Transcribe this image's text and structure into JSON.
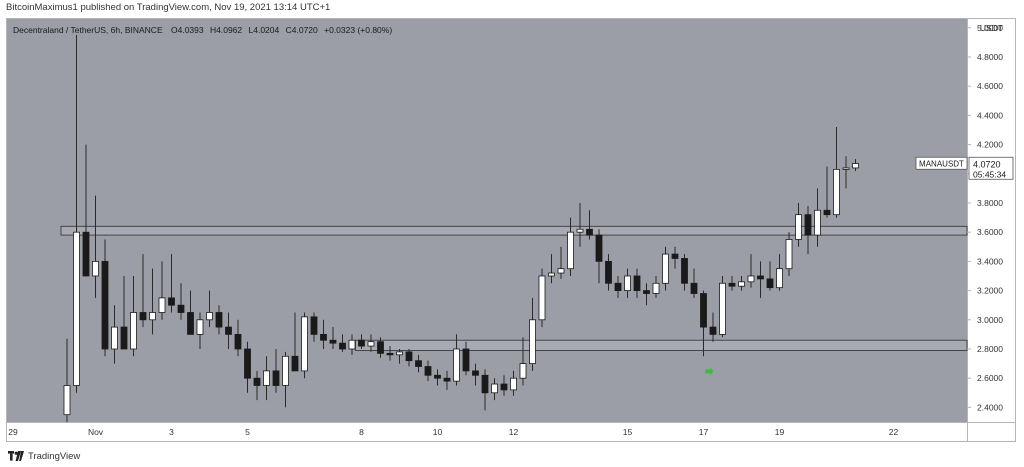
{
  "header": {
    "publisher_line": "BitcoinMaximus1 published on TradingView.com, Nov 19, 2021 13:14 UTC+1"
  },
  "footer": {
    "brand": "TradingView",
    "logo_icon": "tradingview-logo-icon"
  },
  "ohlc_bar": {
    "symbol": "Decentraland / TetherUS, 6h, BINANCE",
    "o_label": "O",
    "o_value": "4.0393",
    "h_label": "H",
    "h_value": "4.0962",
    "l_label": "L",
    "l_value": "4.0204",
    "c_label": "C",
    "c_value": "4.0720",
    "change": "+0.0323 (+0.80%)"
  },
  "price_tag": {
    "symbol": "MANAUSDT",
    "price": "4.0720",
    "countdown": "05:45:34"
  },
  "colors": {
    "background": "#9b9ea7",
    "bull": "#ffffff",
    "bear": "#1a1a1a",
    "wick": "#2a2a2a",
    "zone_border": "#3c3c3c",
    "zone_fill": "#a7aab2",
    "arrow": "#3dbb3d",
    "text": "#333333"
  },
  "chart_data": {
    "type": "candlestick",
    "title": "Decentraland / TetherUS, 6h, BINANCE",
    "y_unit": "USDT",
    "ylim": [
      2.3,
      5.06
    ],
    "y_ticks": [
      "2.4000",
      "2.6000",
      "2.8000",
      "3.0000",
      "3.2000",
      "3.4000",
      "3.6000",
      "3.8000",
      "4.0000",
      "4.2000",
      "4.4000",
      "4.6000",
      "4.8000",
      "5.0000"
    ],
    "x_ticks": [
      {
        "label": "29",
        "t": -9
      },
      {
        "label": "Nov",
        "t": 3
      },
      {
        "label": "3",
        "t": 11
      },
      {
        "label": "5",
        "t": 19
      },
      {
        "label": "8",
        "t": 31
      },
      {
        "label": "10",
        "t": 39
      },
      {
        "label": "12",
        "t": 47
      },
      {
        "label": "15",
        "t": 59
      },
      {
        "label": "17",
        "t": 67
      },
      {
        "label": "19",
        "t": 75
      },
      {
        "label": "22",
        "t": 87
      }
    ],
    "candles": [
      [
        2.35,
        2.87,
        2.3,
        2.55
      ],
      [
        2.55,
        4.95,
        2.5,
        3.6
      ],
      [
        3.6,
        4.2,
        3.3,
        3.3
      ],
      [
        3.3,
        3.85,
        3.15,
        3.4
      ],
      [
        3.4,
        3.55,
        2.75,
        2.8
      ],
      [
        2.8,
        3.1,
        2.7,
        2.95
      ],
      [
        2.95,
        3.3,
        2.8,
        2.8
      ],
      [
        2.8,
        3.3,
        2.75,
        3.05
      ],
      [
        3.05,
        3.45,
        2.95,
        3.0
      ],
      [
        3.0,
        3.35,
        2.9,
        3.05
      ],
      [
        3.05,
        3.4,
        3.0,
        3.15
      ],
      [
        3.15,
        3.45,
        3.05,
        3.1
      ],
      [
        3.1,
        3.25,
        3.0,
        3.05
      ],
      [
        3.05,
        3.2,
        2.9,
        2.9
      ],
      [
        2.9,
        3.05,
        2.8,
        3.0
      ],
      [
        3.0,
        3.2,
        2.95,
        3.05
      ],
      [
        3.05,
        3.1,
        2.9,
        2.95
      ],
      [
        2.95,
        3.05,
        2.8,
        2.9
      ],
      [
        2.9,
        3.0,
        2.75,
        2.8
      ],
      [
        2.8,
        2.85,
        2.5,
        2.6
      ],
      [
        2.6,
        2.65,
        2.45,
        2.55
      ],
      [
        2.55,
        2.75,
        2.45,
        2.65
      ],
      [
        2.65,
        2.8,
        2.5,
        2.55
      ],
      [
        2.55,
        2.78,
        2.4,
        2.75
      ],
      [
        2.75,
        3.05,
        2.65,
        2.65
      ],
      [
        2.65,
        3.05,
        2.6,
        3.02
      ],
      [
        3.02,
        3.05,
        2.85,
        2.9
      ],
      [
        2.9,
        3.0,
        2.8,
        2.86
      ],
      [
        2.86,
        2.95,
        2.8,
        2.84
      ],
      [
        2.84,
        2.9,
        2.78,
        2.8
      ],
      [
        2.8,
        2.9,
        2.76,
        2.86
      ],
      [
        2.86,
        2.9,
        2.8,
        2.82
      ],
      [
        2.82,
        2.9,
        2.78,
        2.85
      ],
      [
        2.85,
        2.88,
        2.74,
        2.77
      ],
      [
        2.77,
        2.82,
        2.72,
        2.76
      ],
      [
        2.76,
        2.8,
        2.7,
        2.78
      ],
      [
        2.78,
        2.8,
        2.68,
        2.72
      ],
      [
        2.72,
        2.76,
        2.64,
        2.68
      ],
      [
        2.68,
        2.72,
        2.58,
        2.62
      ],
      [
        2.62,
        2.66,
        2.55,
        2.6
      ],
      [
        2.6,
        2.65,
        2.52,
        2.58
      ],
      [
        2.58,
        2.9,
        2.55,
        2.8
      ],
      [
        2.8,
        2.85,
        2.62,
        2.65
      ],
      [
        2.65,
        2.7,
        2.55,
        2.62
      ],
      [
        2.62,
        2.66,
        2.38,
        2.5
      ],
      [
        2.5,
        2.6,
        2.45,
        2.56
      ],
      [
        2.56,
        2.62,
        2.48,
        2.52
      ],
      [
        2.52,
        2.65,
        2.48,
        2.6
      ],
      [
        2.6,
        2.88,
        2.55,
        2.7
      ],
      [
        2.7,
        3.15,
        2.65,
        3.0
      ],
      [
        3.0,
        3.35,
        2.95,
        3.3
      ],
      [
        3.3,
        3.45,
        3.25,
        3.32
      ],
      [
        3.32,
        3.5,
        3.28,
        3.35
      ],
      [
        3.35,
        3.7,
        3.3,
        3.6
      ],
      [
        3.6,
        3.8,
        3.5,
        3.62
      ],
      [
        3.62,
        3.75,
        3.55,
        3.58
      ],
      [
        3.58,
        3.62,
        3.25,
        3.4
      ],
      [
        3.4,
        3.45,
        3.2,
        3.25
      ],
      [
        3.25,
        3.3,
        3.15,
        3.2
      ],
      [
        3.2,
        3.35,
        3.15,
        3.3
      ],
      [
        3.3,
        3.35,
        3.15,
        3.2
      ],
      [
        3.2,
        3.25,
        3.1,
        3.18
      ],
      [
        3.18,
        3.3,
        3.15,
        3.25
      ],
      [
        3.25,
        3.5,
        3.2,
        3.45
      ],
      [
        3.45,
        3.5,
        3.35,
        3.42
      ],
      [
        3.42,
        3.45,
        3.2,
        3.25
      ],
      [
        3.25,
        3.35,
        3.15,
        3.18
      ],
      [
        3.18,
        3.2,
        2.75,
        2.95
      ],
      [
        2.95,
        3.05,
        2.85,
        2.9
      ],
      [
        2.9,
        3.3,
        2.88,
        3.25
      ],
      [
        3.25,
        3.3,
        3.2,
        3.23
      ],
      [
        3.23,
        3.3,
        3.2,
        3.26
      ],
      [
        3.26,
        3.45,
        3.22,
        3.3
      ],
      [
        3.3,
        3.4,
        3.15,
        3.28
      ],
      [
        3.28,
        3.4,
        3.2,
        3.22
      ],
      [
        3.22,
        3.45,
        3.2,
        3.35
      ],
      [
        3.35,
        3.6,
        3.3,
        3.55
      ],
      [
        3.55,
        3.8,
        3.5,
        3.72
      ],
      [
        3.72,
        3.78,
        3.45,
        3.58
      ],
      [
        3.58,
        3.9,
        3.5,
        3.75
      ],
      [
        3.75,
        4.05,
        3.7,
        3.72
      ],
      [
        3.72,
        4.32,
        3.7,
        4.03
      ],
      [
        4.03,
        4.12,
        3.9,
        4.04
      ],
      [
        4.04,
        4.1,
        4.02,
        4.07
      ]
    ],
    "zones": [
      {
        "low": 3.58,
        "high": 3.64,
        "from": 0,
        "to": null
      },
      {
        "low": 2.79,
        "high": 2.86,
        "from": 31,
        "to": null
      }
    ],
    "arrow": {
      "t": 67.5,
      "price": 2.64
    },
    "current_price": 4.072,
    "grid": false,
    "legend": "none"
  }
}
